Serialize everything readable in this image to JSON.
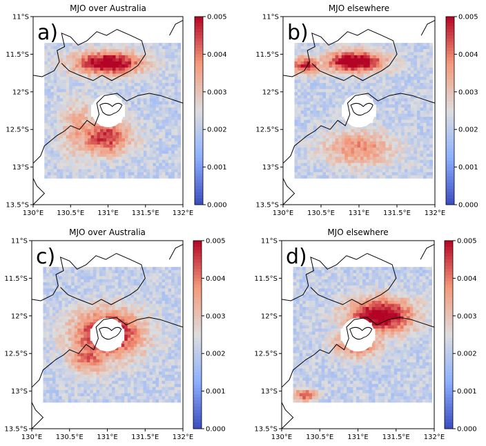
{
  "chart_data": [
    {
      "type": "heatmap",
      "panel_label": "a)",
      "title": "MJO over Australia",
      "x_ticks": [
        "130°E",
        "130.5°E",
        "131°E",
        "131.5°E",
        "132°E"
      ],
      "y_ticks": [
        "11°S",
        "11.5°S",
        "12°S",
        "12.5°S",
        "13°S",
        "13.5°S"
      ],
      "xlim": [
        130,
        132
      ],
      "ylim": [
        -13.5,
        -11
      ],
      "data_extent": {
        "lon": [
          130.15,
          131.97
        ],
        "lat": [
          -13.15,
          -11.35
        ]
      },
      "masked_circle": {
        "lon": 131.0,
        "lat": -12.25,
        "radius_deg": 0.22
      },
      "colorbar": {
        "cmap": "coolwarm",
        "range": [
          0,
          0.005
        ],
        "ticks": [
          "0.000",
          "0.001",
          "0.002",
          "0.003",
          "0.004",
          "0.005"
        ]
      },
      "hotspots": [
        {
          "lon": 131.0,
          "lat": -11.62,
          "rx": 0.6,
          "ry": 0.2,
          "value": 0.0055
        },
        {
          "lon": 130.95,
          "lat": -12.6,
          "rx": 0.45,
          "ry": 0.3,
          "value": 0.0047
        },
        {
          "lon": 130.6,
          "lat": -12.5,
          "rx": 0.3,
          "ry": 0.5,
          "value": 0.0035
        }
      ]
    },
    {
      "type": "heatmap",
      "panel_label": "b)",
      "title": "MJO elsewhere",
      "x_ticks": [
        "130°E",
        "130.5°E",
        "131°E",
        "131.5°E",
        "132°E"
      ],
      "y_ticks": [
        "11°S",
        "11.5°S",
        "12°S",
        "12.5°S",
        "13°S",
        "13.5°S"
      ],
      "xlim": [
        130,
        132
      ],
      "ylim": [
        -13.5,
        -11
      ],
      "data_extent": {
        "lon": [
          130.15,
          131.97
        ],
        "lat": [
          -13.15,
          -11.35
        ]
      },
      "masked_circle": {
        "lon": 131.0,
        "lat": -12.25,
        "radius_deg": 0.22
      },
      "colorbar": {
        "cmap": "coolwarm",
        "range": [
          0,
          0.005
        ],
        "ticks": [
          "0.000",
          "0.001",
          "0.002",
          "0.003",
          "0.004",
          "0.005"
        ]
      },
      "hotspots": [
        {
          "lon": 130.95,
          "lat": -11.6,
          "rx": 0.5,
          "ry": 0.18,
          "value": 0.0056
        },
        {
          "lon": 130.3,
          "lat": -11.65,
          "rx": 0.25,
          "ry": 0.15,
          "value": 0.0048
        },
        {
          "lon": 131.0,
          "lat": -12.75,
          "rx": 0.6,
          "ry": 0.3,
          "value": 0.0038
        }
      ]
    },
    {
      "type": "heatmap",
      "panel_label": "c)",
      "title": "MJO over Australia",
      "x_ticks": [
        "130°E",
        "130.5°E",
        "131°E",
        "131.5°E",
        "132°E"
      ],
      "y_ticks": [
        "11°S",
        "11.5°S",
        "12°S",
        "12.5°S",
        "13°S",
        "13.5°S"
      ],
      "xlim": [
        130,
        132
      ],
      "ylim": [
        -13.5,
        -11
      ],
      "data_extent": {
        "lon": [
          130.15,
          131.97
        ],
        "lat": [
          -13.15,
          -11.35
        ]
      },
      "masked_circle": {
        "lon": 131.0,
        "lat": -12.25,
        "radius_deg": 0.22
      },
      "colorbar": {
        "cmap": "coolwarm",
        "range": [
          0,
          0.005
        ],
        "ticks": [
          "0.000",
          "0.001",
          "0.002",
          "0.003",
          "0.004",
          "0.005"
        ]
      },
      "hotspots": [
        {
          "lon": 131.0,
          "lat": -12.25,
          "rx": 0.6,
          "ry": 0.42,
          "value": 0.0052
        },
        {
          "lon": 130.75,
          "lat": -12.55,
          "rx": 0.35,
          "ry": 0.3,
          "value": 0.0042
        }
      ]
    },
    {
      "type": "heatmap",
      "panel_label": "d)",
      "title": "MJO elsewhere",
      "x_ticks": [
        "130°E",
        "130.5°E",
        "131°E",
        "131.5°E",
        "132°E"
      ],
      "y_ticks": [
        "11°S",
        "11.5°S",
        "12°S",
        "12.5°S",
        "13°S",
        "13.5°S"
      ],
      "xlim": [
        130,
        132
      ],
      "ylim": [
        -13.5,
        -11
      ],
      "data_extent": {
        "lon": [
          130.15,
          131.97
        ],
        "lat": [
          -13.15,
          -11.35
        ]
      },
      "masked_circle": {
        "lon": 131.0,
        "lat": -12.25,
        "radius_deg": 0.22
      },
      "colorbar": {
        "cmap": "coolwarm",
        "range": [
          0,
          0.005
        ],
        "ticks": [
          "0.000",
          "0.001",
          "0.002",
          "0.003",
          "0.004",
          "0.005"
        ]
      },
      "hotspots": [
        {
          "lon": 131.3,
          "lat": -12.0,
          "rx": 0.55,
          "ry": 0.3,
          "value": 0.0055
        },
        {
          "lon": 131.0,
          "lat": -12.35,
          "rx": 0.4,
          "ry": 0.25,
          "value": 0.0045
        },
        {
          "lon": 130.3,
          "lat": -13.05,
          "rx": 0.2,
          "ry": 0.1,
          "value": 0.0045
        }
      ]
    }
  ]
}
